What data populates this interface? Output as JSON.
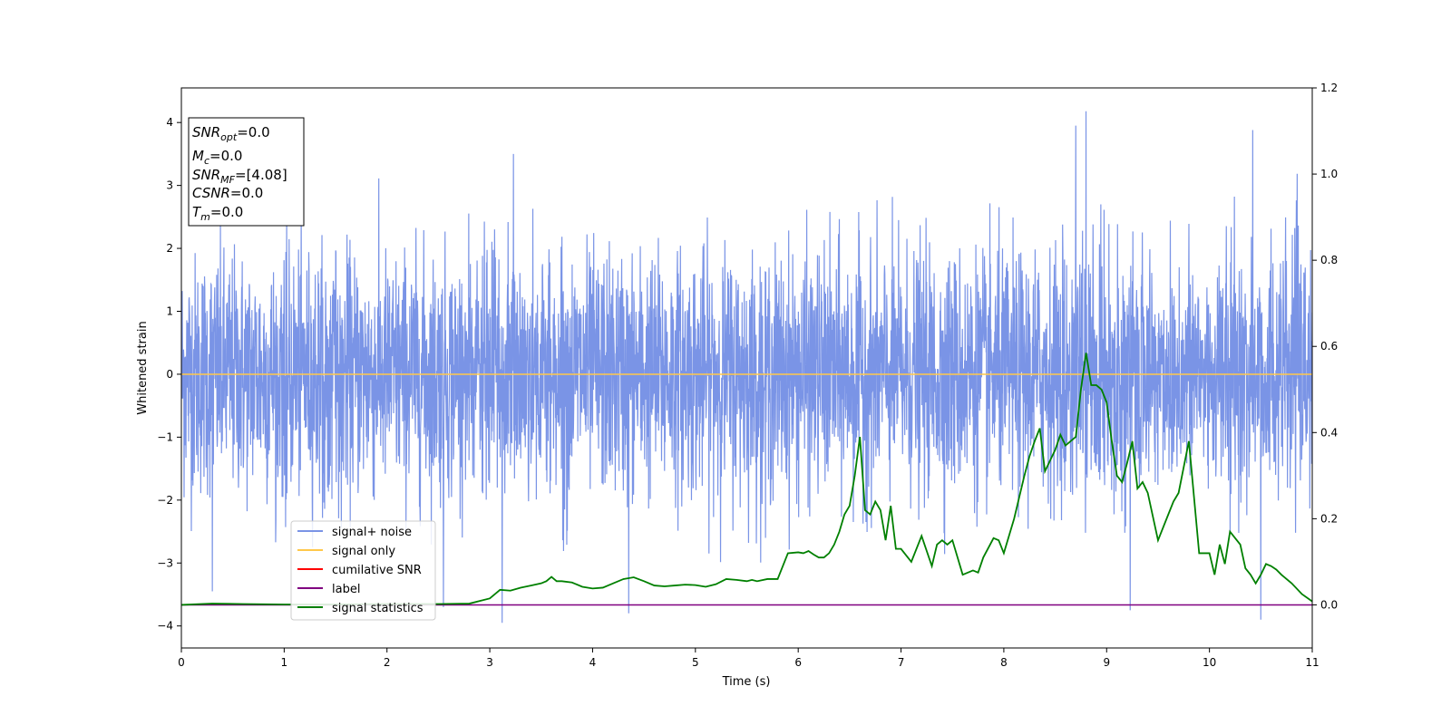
{
  "chart_data": {
    "type": "line",
    "xlabel": "Time (s)",
    "ylabel": "Whitened strain",
    "xlim": [
      0,
      11
    ],
    "ylim": [
      -4.35,
      4.55
    ],
    "y2lim": [
      -0.1,
      1.2
    ],
    "xticks": [
      "0",
      "1",
      "2",
      "3",
      "4",
      "5",
      "6",
      "7",
      "8",
      "9",
      "10",
      "11"
    ],
    "yticks": [
      "−4",
      "−3",
      "−2",
      "−1",
      "0",
      "1",
      "2",
      "3",
      "4"
    ],
    "y2ticks": [
      "0.0",
      "0.2",
      "0.4",
      "0.6",
      "0.8",
      "1.0",
      "1.2"
    ],
    "grid": false,
    "legend_position": "lower-left",
    "info_box": {
      "snr_opt": "=0.0",
      "mc": "=0.0",
      "snr_mf": "=[4.08]",
      "csnr": "=0.0",
      "tm": "=0.0"
    },
    "series": [
      {
        "name": "signal+ noise",
        "color": "#7a94e6",
        "axis": "left",
        "description_range": [
          -3.95,
          4.18
        ],
        "peaks": [
          {
            "x": 3.12,
            "y": -3.95
          },
          {
            "x": 3.23,
            "y": 3.5
          },
          {
            "x": 4.35,
            "y": -3.8
          },
          {
            "x": 8.7,
            "y": 3.95
          },
          {
            "x": 8.8,
            "y": 4.18
          },
          {
            "x": 10.42,
            "y": 3.88
          },
          {
            "x": 10.5,
            "y": -3.9
          },
          {
            "x": 0.3,
            "y": -3.45
          },
          {
            "x": 9.23,
            "y": -3.75
          },
          {
            "x": 2.55,
            "y": -3.7
          }
        ]
      },
      {
        "name": "signal only",
        "color": "#ffc84a",
        "axis": "left",
        "x": [
          0,
          11
        ],
        "y": [
          0,
          0
        ]
      },
      {
        "name": "cumilative SNR",
        "color": "#ff0000",
        "axis": "right",
        "x": [],
        "y": []
      },
      {
        "name": "label",
        "color": "#800080",
        "axis": "right",
        "x": [
          0,
          11
        ],
        "y": [
          0,
          0
        ]
      },
      {
        "name": "signal statistics",
        "color": "#008000",
        "axis": "right",
        "x": [
          0,
          0.3,
          0.6,
          1,
          1.5,
          2,
          2.5,
          2.8,
          3.0,
          3.1,
          3.2,
          3.3,
          3.4,
          3.5,
          3.55,
          3.6,
          3.65,
          3.7,
          3.8,
          3.9,
          4.0,
          4.1,
          4.2,
          4.3,
          4.4,
          4.5,
          4.6,
          4.7,
          4.8,
          4.9,
          5.0,
          5.1,
          5.2,
          5.3,
          5.4,
          5.5,
          5.55,
          5.6,
          5.7,
          5.8,
          5.9,
          6.0,
          6.05,
          6.1,
          6.15,
          6.2,
          6.25,
          6.3,
          6.35,
          6.4,
          6.45,
          6.5,
          6.55,
          6.6,
          6.65,
          6.7,
          6.75,
          6.8,
          6.85,
          6.9,
          6.95,
          7.0,
          7.1,
          7.2,
          7.3,
          7.35,
          7.4,
          7.45,
          7.5,
          7.6,
          7.7,
          7.75,
          7.8,
          7.9,
          7.95,
          8.0,
          8.1,
          8.2,
          8.25,
          8.3,
          8.35,
          8.4,
          8.5,
          8.55,
          8.6,
          8.7,
          8.75,
          8.8,
          8.85,
          8.9,
          8.95,
          9.0,
          9.05,
          9.1,
          9.15,
          9.2,
          9.25,
          9.3,
          9.35,
          9.4,
          9.5,
          9.6,
          9.65,
          9.7,
          9.8,
          9.9,
          10.0,
          10.05,
          10.1,
          10.15,
          10.2,
          10.3,
          10.35,
          10.4,
          10.45,
          10.5,
          10.55,
          10.6,
          10.65,
          10.7,
          10.8,
          10.9,
          11.0
        ],
        "y": [
          0.0,
          0.003,
          0.002,
          0.001,
          0.001,
          0.002,
          0.002,
          0.003,
          0.015,
          0.035,
          0.033,
          0.04,
          0.045,
          0.05,
          0.055,
          0.065,
          0.055,
          0.055,
          0.052,
          0.042,
          0.038,
          0.04,
          0.05,
          0.06,
          0.064,
          0.055,
          0.045,
          0.043,
          0.045,
          0.047,
          0.046,
          0.042,
          0.048,
          0.06,
          0.058,
          0.055,
          0.058,
          0.055,
          0.06,
          0.06,
          0.12,
          0.122,
          0.12,
          0.125,
          0.117,
          0.11,
          0.11,
          0.12,
          0.14,
          0.17,
          0.21,
          0.23,
          0.3,
          0.39,
          0.22,
          0.21,
          0.24,
          0.22,
          0.15,
          0.23,
          0.13,
          0.13,
          0.1,
          0.16,
          0.09,
          0.14,
          0.15,
          0.14,
          0.15,
          0.07,
          0.08,
          0.075,
          0.11,
          0.155,
          0.15,
          0.12,
          0.2,
          0.3,
          0.345,
          0.38,
          0.41,
          0.31,
          0.36,
          0.395,
          0.37,
          0.39,
          0.5,
          0.585,
          0.51,
          0.51,
          0.5,
          0.47,
          0.38,
          0.3,
          0.285,
          0.33,
          0.38,
          0.27,
          0.285,
          0.26,
          0.15,
          0.21,
          0.24,
          0.26,
          0.38,
          0.12,
          0.12,
          0.07,
          0.14,
          0.095,
          0.17,
          0.14,
          0.085,
          0.07,
          0.05,
          0.07,
          0.095,
          0.09,
          0.082,
          0.07,
          0.05,
          0.025,
          0.008
        ]
      }
    ]
  }
}
